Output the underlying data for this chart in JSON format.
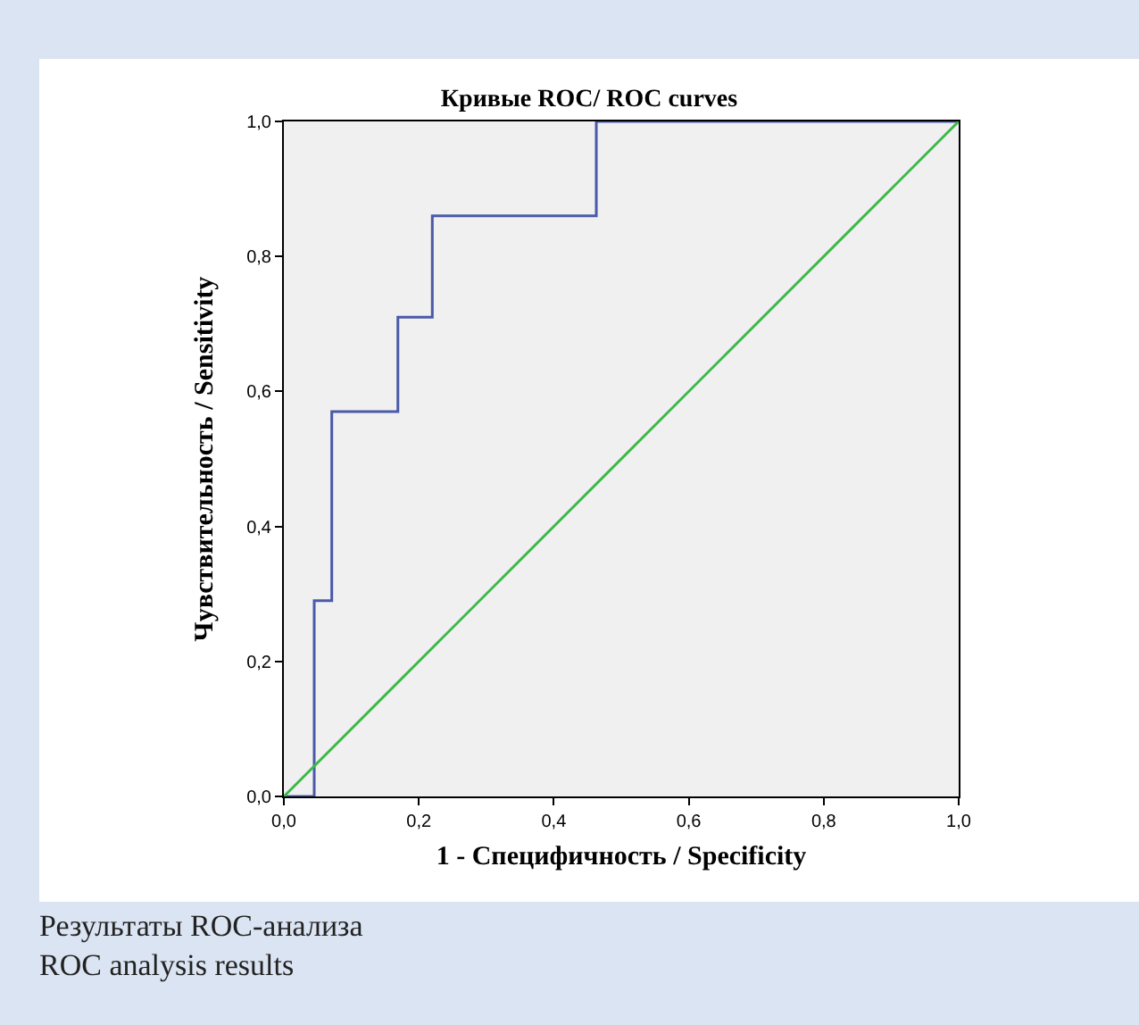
{
  "chart_data": {
    "type": "step",
    "title": "Кривые ROC/ ROC curves",
    "xlabel": "1 - Специфичность / Specificity",
    "ylabel": "Чувствительность / Sensitivity",
    "series": [
      {
        "color": "#4a5aa8",
        "x": [
          0,
          0.045,
          0.071,
          0.169,
          0.22,
          0.463,
          1
        ],
        "values": [
          0,
          0.29,
          0.57,
          0.71,
          0.86,
          1,
          1
        ]
      },
      {
        "type": "line",
        "color": "#3cb84a",
        "x": [
          0,
          1
        ],
        "values": [
          0,
          1
        ]
      }
    ],
    "xlim": [
      0,
      1
    ],
    "ylim": [
      0,
      1
    ],
    "xticks": [
      {
        "value": 0,
        "label": "0,0"
      },
      {
        "value": 0.2,
        "label": "0,2"
      },
      {
        "value": 0.4,
        "label": "0,4"
      },
      {
        "value": 0.6,
        "label": "0,6"
      },
      {
        "value": 0.8,
        "label": "0,8"
      },
      {
        "value": 1,
        "label": "1,0"
      }
    ],
    "yticks": [
      {
        "value": 0,
        "label": "0,0"
      },
      {
        "value": 0.2,
        "label": "0,2"
      },
      {
        "value": 0.4,
        "label": "0,4"
      },
      {
        "value": 0.6,
        "label": "0,6"
      },
      {
        "value": 0.8,
        "label": "0,8"
      },
      {
        "value": 1,
        "label": "1,0"
      }
    ],
    "grid": false,
    "legend": false,
    "annotations": [
      "Результаты ROC-анализа",
      "ROC analysis results"
    ]
  }
}
